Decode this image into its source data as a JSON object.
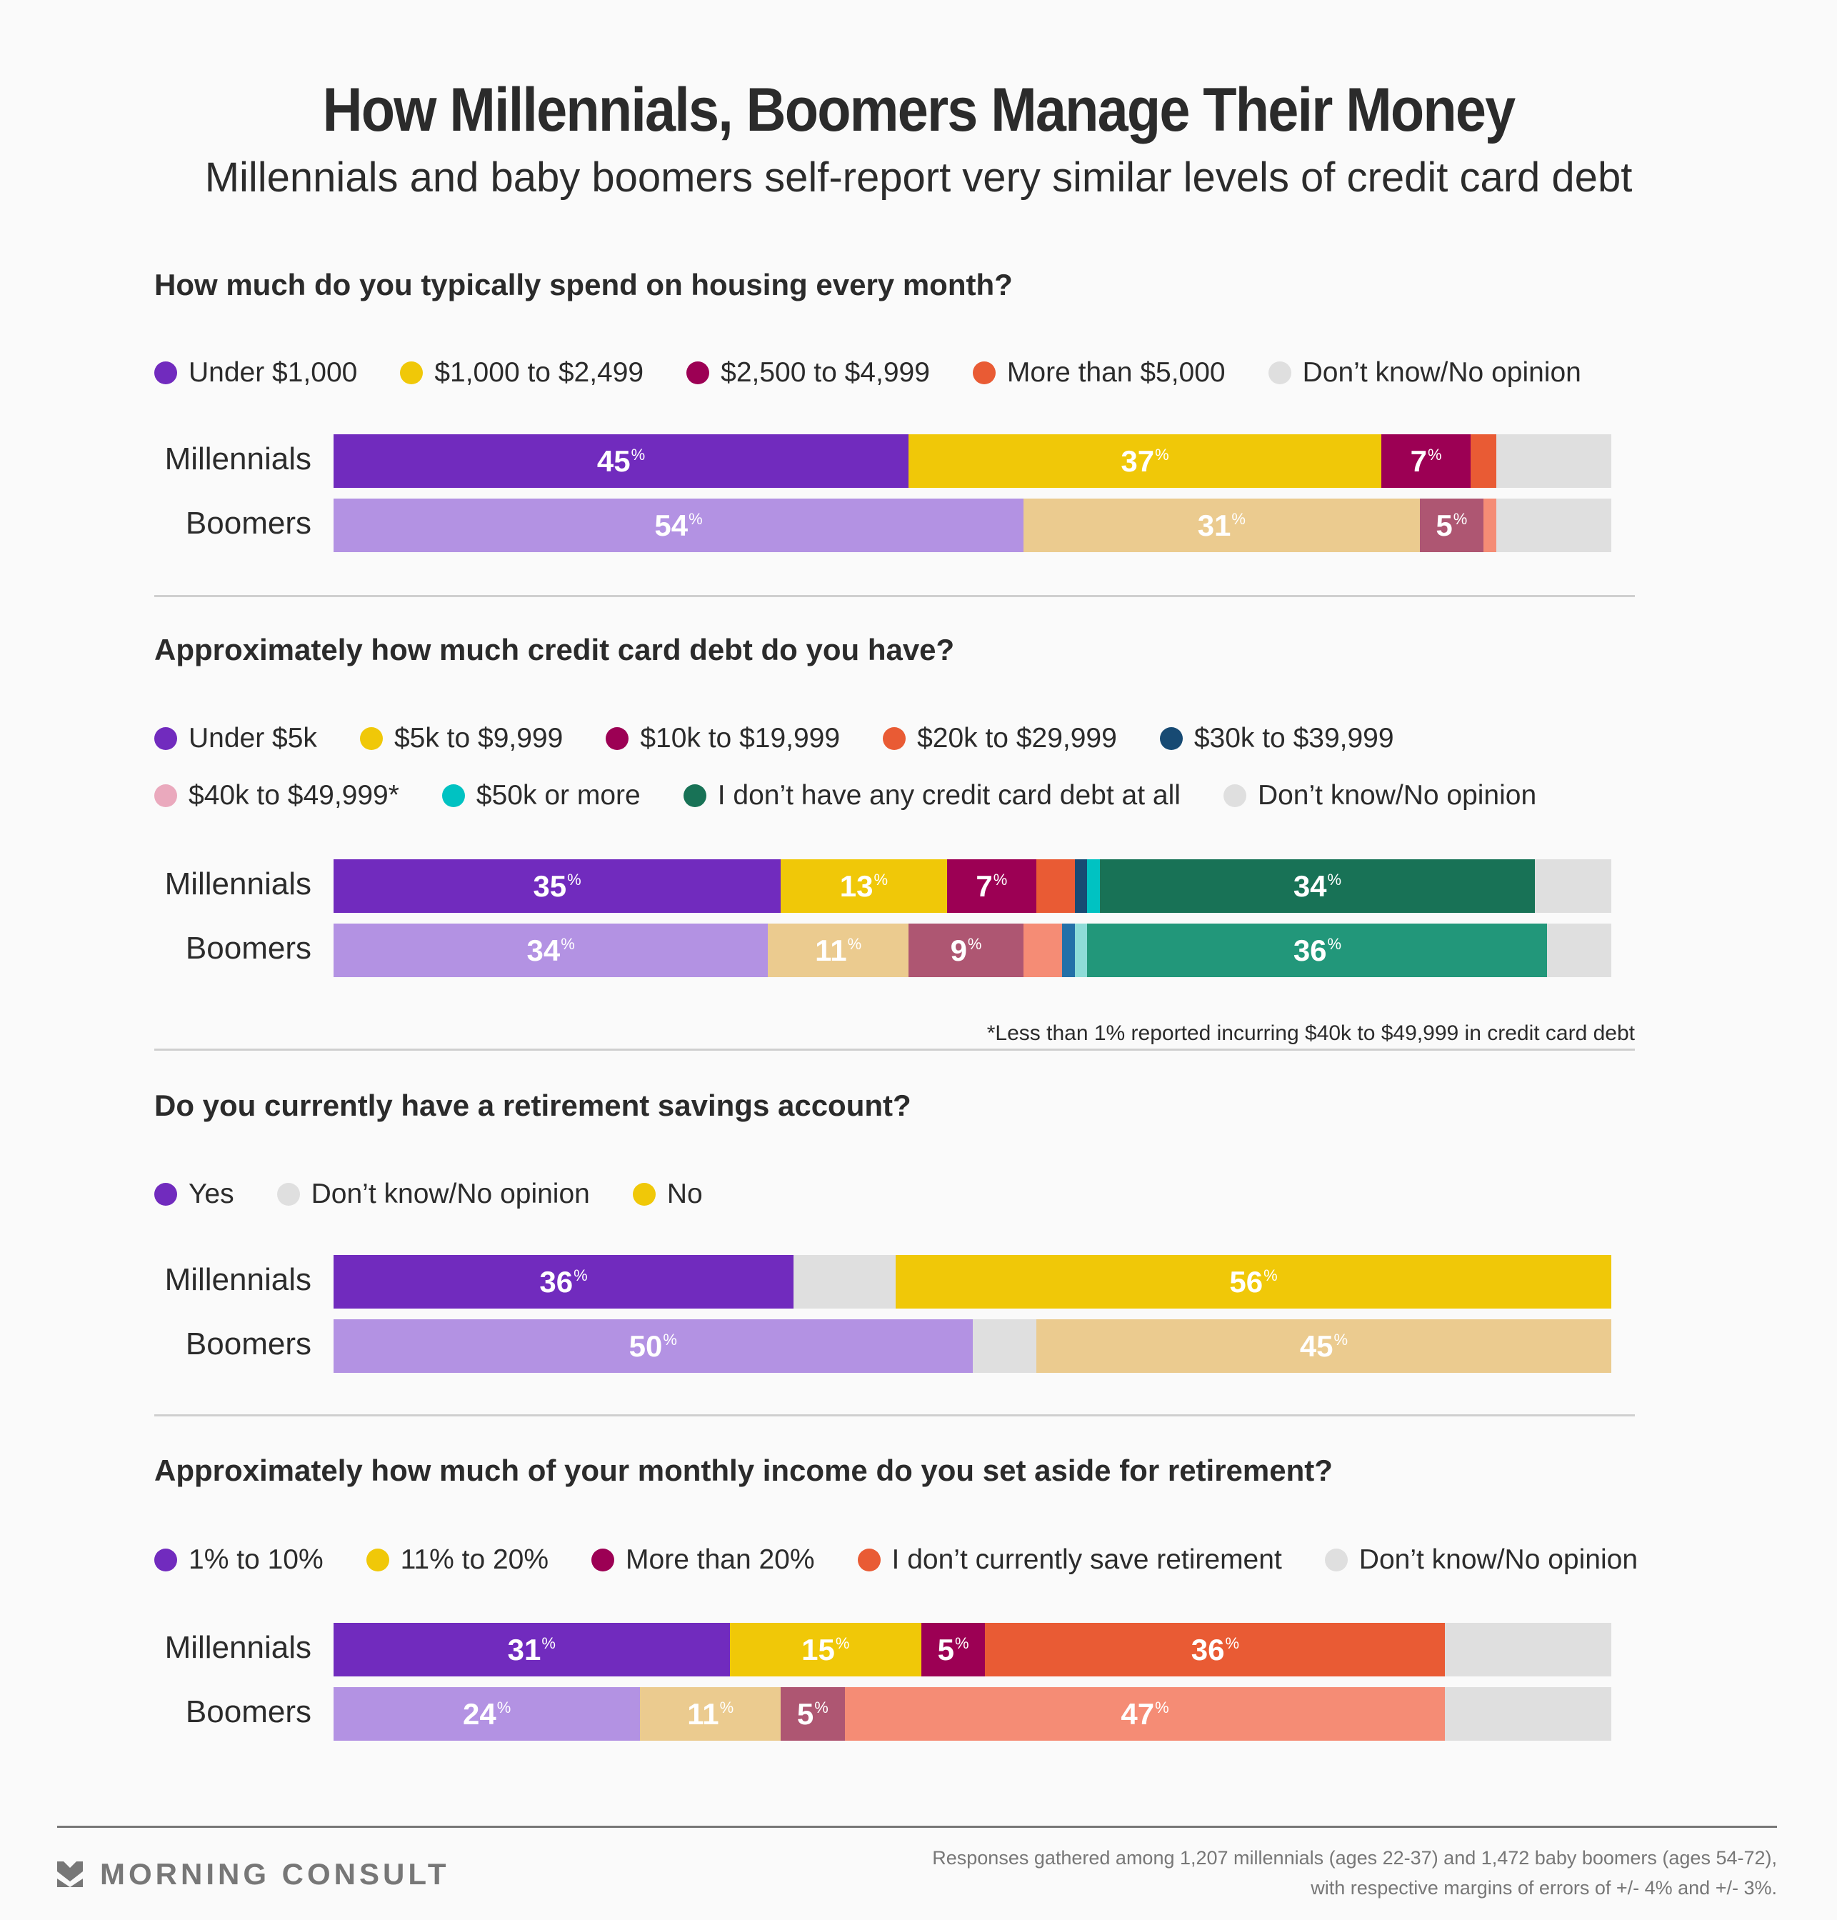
{
  "chart_data": {
    "type": "bar",
    "orientation": "horizontal-stacked-100",
    "title": "How Millennials, Boomers Manage Their Money",
    "subtitle": "Millennials and baby boomers self-report very similar levels of credit card debt",
    "panels": [
      {
        "question": "How much do you typically spend on housing every month?",
        "categories": [
          "Millennials",
          "Boomers"
        ],
        "series": [
          {
            "name": "Under $1,000",
            "values": [
              45,
              54
            ],
            "labels": [
              "45",
              "54"
            ],
            "colors": [
              "#712bbe",
              "#b392e3"
            ]
          },
          {
            "name": "$1,000 to $2,499",
            "values": [
              37,
              31
            ],
            "labels": [
              "37",
              "31"
            ],
            "colors": [
              "#f0c808",
              "#ebcb8f"
            ]
          },
          {
            "name": "$2,500 to $4,999",
            "values": [
              7,
              5
            ],
            "labels": [
              "7",
              "5"
            ],
            "colors": [
              "#9c0054",
              "#ae5672"
            ]
          },
          {
            "name": "More than $5,000",
            "values": [
              2,
              1
            ],
            "labels": [
              "",
              ""
            ],
            "colors": [
              "#e95b34",
              "#f58c75"
            ]
          },
          {
            "name": "Don’t know/No opinion",
            "values": [
              9,
              9
            ],
            "labels": [
              "",
              ""
            ],
            "colors": [
              "#dfdfdf",
              "#dfdfdf"
            ]
          }
        ],
        "legend_colors": [
          "#712bbe",
          "#f0c808",
          "#9c0054",
          "#e95b34",
          "#dfdfdf"
        ]
      },
      {
        "question": "Approximately how much credit card debt do you have?",
        "categories": [
          "Millennials",
          "Boomers"
        ],
        "series": [
          {
            "name": "Under $5k",
            "values": [
              35,
              34
            ],
            "labels": [
              "35",
              "34"
            ],
            "colors": [
              "#712bbe",
              "#b392e3"
            ]
          },
          {
            "name": "$5k to $9,999",
            "values": [
              13,
              11
            ],
            "labels": [
              "13",
              "11"
            ],
            "colors": [
              "#f0c808",
              "#ebcb8f"
            ]
          },
          {
            "name": "$10k to $19,999",
            "values": [
              7,
              9
            ],
            "labels": [
              "7",
              "9"
            ],
            "colors": [
              "#9c0054",
              "#ae5672"
            ]
          },
          {
            "name": "$20k to $29,999",
            "values": [
              3,
              3
            ],
            "labels": [
              "",
              ""
            ],
            "colors": [
              "#e95b34",
              "#f58c75"
            ]
          },
          {
            "name": "$30k to $39,999",
            "values": [
              1,
              1
            ],
            "labels": [
              "",
              ""
            ],
            "colors": [
              "#174a73",
              "#2370a8"
            ]
          },
          {
            "name": "$40k to $49,999*",
            "values": [
              0,
              0
            ],
            "labels": [
              "",
              ""
            ],
            "colors": [
              "#eaa9bd",
              "#eaa9bd"
            ]
          },
          {
            "name": "$50k or more",
            "values": [
              1,
              1
            ],
            "labels": [
              "",
              ""
            ],
            "colors": [
              "#00c2c2",
              "#8edcd8"
            ]
          },
          {
            "name": "I don’t have any credit card debt at all",
            "values": [
              34,
              36
            ],
            "labels": [
              "34",
              "36"
            ],
            "colors": [
              "#187256",
              "#22977a"
            ]
          },
          {
            "name": "Don’t know/No opinion",
            "values": [
              6,
              5
            ],
            "labels": [
              "",
              ""
            ],
            "colors": [
              "#dfdfdf",
              "#dfdfdf"
            ]
          }
        ],
        "legend_colors": [
          "#712bbe",
          "#f0c808",
          "#9c0054",
          "#e95b34",
          "#174a73",
          "#eaa9bd",
          "#00c2c2",
          "#187256",
          "#dfdfdf"
        ],
        "legend_rows": [
          [
            0,
            1,
            2,
            3,
            4
          ],
          [
            5,
            6,
            7,
            8
          ]
        ],
        "footnote": "*Less than 1% reported incurring $40k to $49,999 in credit card debt"
      },
      {
        "question": "Do you currently have a retirement savings account?",
        "categories": [
          "Millennials",
          "Boomers"
        ],
        "series": [
          {
            "name": "Yes",
            "values": [
              36,
              50
            ],
            "labels": [
              "36",
              "50"
            ],
            "colors": [
              "#712bbe",
              "#b392e3"
            ]
          },
          {
            "name": "Don’t know/No opinion",
            "values": [
              8,
              5
            ],
            "labels": [
              "",
              ""
            ],
            "colors": [
              "#dfdfdf",
              "#dfdfdf"
            ]
          },
          {
            "name": "No",
            "values": [
              56,
              45
            ],
            "labels": [
              "56",
              "45"
            ],
            "colors": [
              "#f0c808",
              "#ebcb8f"
            ]
          }
        ],
        "legend_colors": [
          "#712bbe",
          "#dfdfdf",
          "#f0c808"
        ]
      },
      {
        "question": "Approximately how much of your monthly income do you set aside for retirement?",
        "categories": [
          "Millennials",
          "Boomers"
        ],
        "series": [
          {
            "name": "1% to 10%",
            "values": [
              31,
              24
            ],
            "labels": [
              "31",
              "24"
            ],
            "colors": [
              "#712bbe",
              "#b392e3"
            ]
          },
          {
            "name": "11% to 20%",
            "values": [
              15,
              11
            ],
            "labels": [
              "15",
              "11"
            ],
            "colors": [
              "#f0c808",
              "#ebcb8f"
            ]
          },
          {
            "name": "More than 20%",
            "values": [
              5,
              5
            ],
            "labels": [
              "5",
              "5"
            ],
            "colors": [
              "#9c0054",
              "#ae5672"
            ]
          },
          {
            "name": "I don’t currently save retirement",
            "values": [
              36,
              47
            ],
            "labels": [
              "36",
              "47"
            ],
            "colors": [
              "#e95b34",
              "#f58c75"
            ]
          },
          {
            "name": "Don’t know/No opinion",
            "values": [
              13,
              13
            ],
            "labels": [
              "",
              ""
            ],
            "colors": [
              "#dfdfdf",
              "#dfdfdf"
            ]
          }
        ],
        "legend_colors": [
          "#712bbe",
          "#f0c808",
          "#9c0054",
          "#e95b34",
          "#dfdfdf"
        ]
      }
    ],
    "percent_sign": "%",
    "xlim": [
      0,
      100
    ],
    "grid": false,
    "legend_placement": "top-left"
  },
  "footer": {
    "brand": "MORNING CONSULT",
    "note": "Responses gathered among 1,207 millennials (ages 22-37) and 1,472 baby boomers (ages 54-72), with respective margins of errors of +/- 4% and +/- 3%."
  }
}
